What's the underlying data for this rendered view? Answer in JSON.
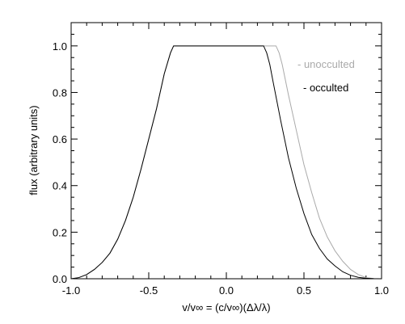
{
  "chart_data": {
    "type": "line",
    "title": "",
    "xlabel": "v/v∞ = (c/v∞)(Δλ/λ)",
    "ylabel": "flux (arbitrary units)",
    "xlim": [
      -1.0,
      1.0
    ],
    "ylim": [
      0.0,
      1.1
    ],
    "xticks": [
      -1.0,
      -0.5,
      0.0,
      0.5,
      1.0
    ],
    "xtick_labels": [
      "-1.0",
      "-0.5",
      "0.0",
      "0.5",
      "1.0"
    ],
    "yticks": [
      0.0,
      0.2,
      0.4,
      0.6,
      0.8,
      1.0
    ],
    "ytick_labels": [
      "0.0",
      "0.2",
      "0.4",
      "0.6",
      "0.8",
      "1.0"
    ],
    "grid": false,
    "legend_position": "top-right",
    "series": [
      {
        "name": "unocculted",
        "legend_label": "- unocculted",
        "color": "#aaaaaa",
        "x": [
          -1.0,
          -0.95,
          -0.9,
          -0.85,
          -0.8,
          -0.75,
          -0.7,
          -0.65,
          -0.6,
          -0.55,
          -0.5,
          -0.45,
          -0.4,
          -0.36,
          -0.34,
          -0.33,
          0.0,
          0.3,
          0.32,
          0.34,
          0.36,
          0.4,
          0.45,
          0.5,
          0.55,
          0.6,
          0.65,
          0.7,
          0.75,
          0.8,
          0.85,
          0.9,
          0.95,
          1.0
        ],
        "y": [
          0.0,
          0.005,
          0.018,
          0.04,
          0.07,
          0.11,
          0.17,
          0.25,
          0.35,
          0.47,
          0.6,
          0.73,
          0.88,
          0.97,
          1.0,
          1.0,
          1.0,
          1.0,
          1.0,
          0.97,
          0.92,
          0.79,
          0.64,
          0.49,
          0.37,
          0.26,
          0.18,
          0.12,
          0.075,
          0.04,
          0.018,
          0.005,
          0.001,
          0.0
        ]
      },
      {
        "name": "occulted",
        "legend_label": "- occulted",
        "color": "#000000",
        "x": [
          -1.0,
          -0.95,
          -0.9,
          -0.85,
          -0.8,
          -0.75,
          -0.7,
          -0.65,
          -0.6,
          -0.55,
          -0.5,
          -0.45,
          -0.4,
          -0.36,
          -0.34,
          -0.33,
          0.0,
          0.24,
          0.26,
          0.28,
          0.3,
          0.35,
          0.4,
          0.45,
          0.5,
          0.55,
          0.6,
          0.65,
          0.7,
          0.75,
          0.8,
          0.85,
          0.9,
          0.95,
          1.0
        ],
        "y": [
          0.0,
          0.005,
          0.018,
          0.04,
          0.07,
          0.11,
          0.17,
          0.25,
          0.35,
          0.47,
          0.6,
          0.73,
          0.88,
          0.97,
          1.0,
          1.0,
          1.0,
          1.0,
          0.97,
          0.92,
          0.85,
          0.68,
          0.52,
          0.39,
          0.28,
          0.19,
          0.13,
          0.085,
          0.055,
          0.03,
          0.015,
          0.006,
          0.002,
          0.0005,
          0.0
        ]
      }
    ]
  }
}
